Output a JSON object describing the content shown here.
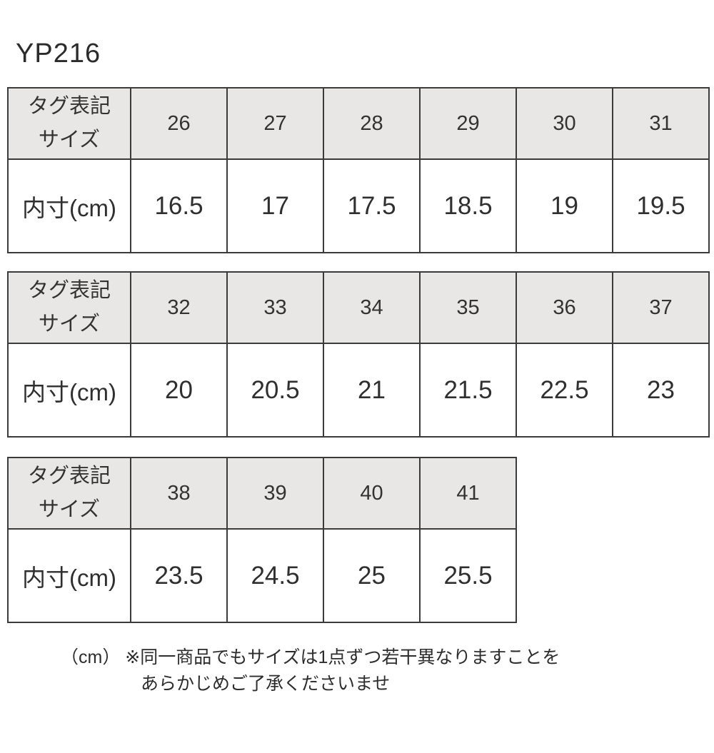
{
  "title": "YP216",
  "tables": [
    {
      "header_label": "タグ表記\nサイズ",
      "row_label": "内寸(cm)",
      "sizes": [
        "26",
        "27",
        "28",
        "29",
        "30",
        "31"
      ],
      "values": [
        "16.5",
        "17",
        "17.5",
        "18.5",
        "19",
        "19.5"
      ]
    },
    {
      "header_label": "タグ表記\nサイズ",
      "row_label": "内寸(cm)",
      "sizes": [
        "32",
        "33",
        "34",
        "35",
        "36",
        "37"
      ],
      "values": [
        "20",
        "20.5",
        "21",
        "21.5",
        "22.5",
        "23"
      ]
    },
    {
      "header_label": "タグ表記\nサイズ",
      "row_label": "内寸(cm)",
      "sizes": [
        "38",
        "39",
        "40",
        "41"
      ],
      "values": [
        "23.5",
        "24.5",
        "25",
        "25.5"
      ]
    }
  ],
  "footnote": {
    "line1": "（cm） ※同一商品でもサイズは1点ずつ若干異なりますことを",
    "line2": "あらかじめご了承くださいませ"
  },
  "colors": {
    "header_bg": "#e9e7e5",
    "border": "#3b3b3b",
    "text": "#333333",
    "background": "#ffffff"
  }
}
